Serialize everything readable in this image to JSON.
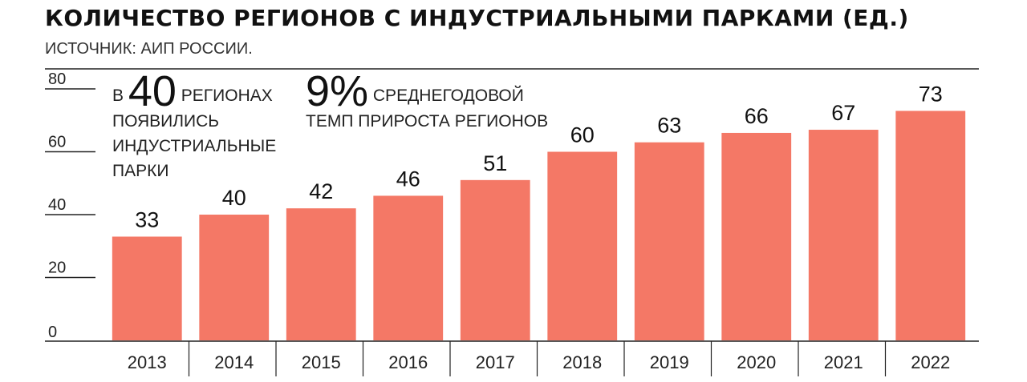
{
  "header": {
    "title": "КОЛИЧЕСТВО РЕГИОНОВ С ИНДУСТРИАЛЬНЫМИ ПАРКАМИ (ЕД.)",
    "subtitle": "ИСТОЧНИК: АИП РОССИИ."
  },
  "annotations": {
    "first": {
      "prefix": "в",
      "number": "40",
      "word": "регионах",
      "rest": "появились индустриальные парки"
    },
    "second": {
      "number": "9%",
      "word": "среднегодовой",
      "rest": "темп прироста регионов"
    }
  },
  "colors": {
    "bar": "#f47866",
    "axis": "#222222",
    "text": "#111111"
  },
  "chart_data": {
    "type": "bar",
    "title": "КОЛИЧЕСТВО РЕГИОНОВ С ИНДУСТРИАЛЬНЫМИ ПАРКАМИ (ЕД.)",
    "categories": [
      "2013",
      "2014",
      "2015",
      "2016",
      "2017",
      "2018",
      "2019",
      "2020",
      "2021",
      "2022"
    ],
    "values": [
      33,
      40,
      42,
      46,
      51,
      60,
      63,
      66,
      67,
      73
    ],
    "data_labels": [
      "33",
      "40",
      "42",
      "46",
      "51",
      "60",
      "63",
      "66",
      "67",
      "73"
    ],
    "yticks": [
      0,
      20,
      40,
      60,
      80
    ],
    "ylim": [
      0,
      85
    ],
    "xlabel": "",
    "ylabel": "",
    "grid": false,
    "legend": "none"
  }
}
